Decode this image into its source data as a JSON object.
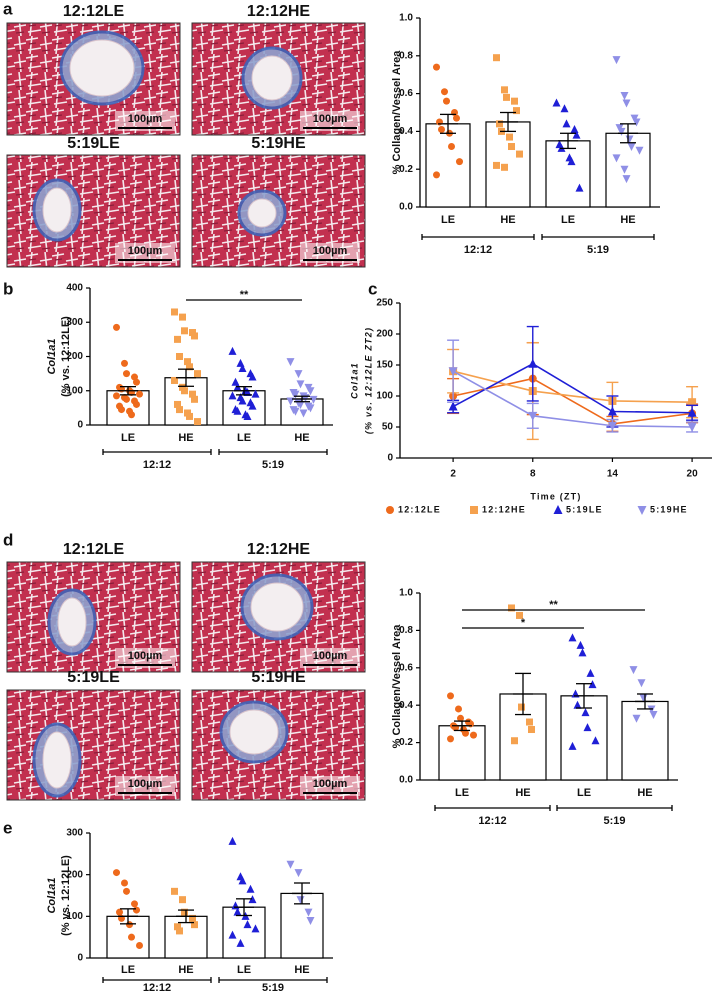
{
  "panel_labels": [
    "a",
    "b",
    "c",
    "d",
    "e"
  ],
  "micrographs": [
    {
      "labels": [
        "12:12LE",
        "12:12HE",
        "5:19LE",
        "5:19HE"
      ],
      "scale_bar": "100µm"
    },
    {
      "labels": [
        "12:12LE",
        "12:12HE",
        "5:19LE",
        "5:19HE"
      ],
      "scale_bar": "100µm"
    }
  ],
  "chart_data": [
    {
      "type": "bar",
      "y_label": [
        "% Collagen/Vessel Area"
      ],
      "categories": [
        "LE",
        "HE",
        "LE",
        "HE"
      ],
      "groups": [
        "12:12",
        "5:19"
      ],
      "values": [
        0.44,
        0.45,
        0.35,
        0.39
      ],
      "errors": [
        0.05,
        0.05,
        0.04,
        0.05
      ],
      "points": [
        [
          0.74,
          0.61,
          0.56,
          0.5,
          0.47,
          0.45,
          0.41,
          0.39,
          0.32,
          0.24,
          0.17
        ],
        [
          0.79,
          0.62,
          0.58,
          0.56,
          0.51,
          0.44,
          0.4,
          0.37,
          0.32,
          0.28,
          0.22,
          0.21
        ],
        [
          0.55,
          0.52,
          0.44,
          0.41,
          0.38,
          0.33,
          0.31,
          0.26,
          0.24,
          0.1
        ],
        [
          0.78,
          0.59,
          0.55,
          0.47,
          0.45,
          0.42,
          0.4,
          0.36,
          0.32,
          0.3,
          0.26,
          0.2,
          0.15
        ]
      ],
      "colors": [
        "#ee6a1c",
        "#f5a14e",
        "#1f1fd6",
        "#8f8fe6"
      ],
      "markers": [
        "circle",
        "square",
        "triangle-up",
        "triangle-down"
      ],
      "ylim": [
        0,
        1
      ],
      "yticks": [
        {
          "value": 0,
          "label": "0.0"
        },
        {
          "value": 0.2,
          "label": "0.2"
        },
        {
          "value": 0.4,
          "label": "0.4"
        },
        {
          "value": 0.6,
          "label": "0.6"
        },
        {
          "value": 0.8,
          "label": "0.8"
        },
        {
          "value": 1,
          "label": "1.0"
        }
      ],
      "significance": []
    },
    {
      "type": "bar",
      "y_label": [
        "Col1a1",
        "(% vs. 12:12LE)"
      ],
      "categories": [
        "LE",
        "HE",
        "LE",
        "HE"
      ],
      "groups": [
        "12:12",
        "5:19"
      ],
      "values": [
        100,
        138,
        100,
        76
      ],
      "errors": [
        12,
        25,
        12,
        8
      ],
      "points": [
        [
          285,
          180,
          150,
          140,
          125,
          110,
          105,
          100,
          95,
          90,
          85,
          80,
          75,
          70,
          60,
          55,
          45,
          40,
          30
        ],
        [
          330,
          315,
          275,
          270,
          260,
          250,
          200,
          185,
          170,
          150,
          130,
          110,
          100,
          90,
          75,
          60,
          45,
          35,
          25,
          10
        ],
        [
          215,
          180,
          165,
          150,
          140,
          125,
          110,
          100,
          95,
          90,
          85,
          80,
          70,
          65,
          55,
          45,
          40,
          30,
          25
        ],
        [
          185,
          150,
          120,
          110,
          100,
          95,
          90,
          85,
          80,
          75,
          70,
          65,
          60,
          55,
          50,
          45,
          40,
          35
        ]
      ],
      "colors": [
        "#ee6a1c",
        "#f5a14e",
        "#1f1fd6",
        "#8f8fe6"
      ],
      "markers": [
        "circle",
        "square",
        "triangle-up",
        "triangle-down"
      ],
      "ylim": [
        0,
        400
      ],
      "yticks": [
        0,
        100,
        200,
        300,
        400
      ],
      "significance": [
        {
          "label": "**",
          "from": 1,
          "to": 3
        }
      ]
    },
    {
      "type": "line",
      "x_label": "Time (ZT)",
      "y_label": [
        "Col1a1",
        "(% vs. 12:12LE ZT2)"
      ],
      "x": [
        2,
        8,
        14,
        20
      ],
      "xlim": [
        -2,
        21.5
      ],
      "xticks": [
        2,
        8,
        14,
        20
      ],
      "ylim": [
        0,
        250
      ],
      "yticks": [
        0,
        50,
        100,
        150,
        200,
        250
      ],
      "series": [
        {
          "name": "12:12LE",
          "color": "#ee6a1c",
          "marker": "circle",
          "values": [
            100,
            128,
            55,
            72
          ],
          "errors": [
            28,
            58,
            12,
            15
          ]
        },
        {
          "name": "12:12HE",
          "color": "#f5a14e",
          "marker": "square",
          "values": [
            140,
            108,
            92,
            90
          ],
          "errors": [
            35,
            78,
            30,
            25
          ]
        },
        {
          "name": "5:19LE",
          "color": "#1f1fd6",
          "marker": "triangle-up",
          "values": [
            83,
            152,
            75,
            73
          ],
          "errors": [
            10,
            60,
            25,
            12
          ]
        },
        {
          "name": "5:19HE",
          "color": "#8f8fe6",
          "marker": "triangle-down",
          "values": [
            140,
            68,
            52,
            50
          ],
          "errors": [
            50,
            20,
            10,
            8
          ]
        }
      ]
    },
    {
      "type": "bar",
      "y_label": [
        "% Collagen/Vessel Area"
      ],
      "categories": [
        "LE",
        "HE",
        "LE",
        "HE"
      ],
      "groups": [
        "12:12",
        "5:19"
      ],
      "values": [
        0.29,
        0.46,
        0.45,
        0.42
      ],
      "errors": [
        0.025,
        0.11,
        0.065,
        0.04
      ],
      "points": [
        [
          0.45,
          0.38,
          0.33,
          0.31,
          0.3,
          0.29,
          0.28,
          0.27,
          0.25,
          0.24,
          0.22
        ],
        [
          0.92,
          0.88,
          0.39,
          0.31,
          0.27,
          0.21
        ],
        [
          0.76,
          0.72,
          0.68,
          0.57,
          0.51,
          0.46,
          0.4,
          0.36,
          0.28,
          0.21,
          0.18
        ],
        [
          0.59,
          0.52,
          0.44,
          0.38,
          0.35,
          0.33
        ]
      ],
      "colors": [
        "#ee6a1c",
        "#f5a14e",
        "#1f1fd6",
        "#8f8fe6"
      ],
      "markers": [
        "circle",
        "square",
        "triangle-up",
        "triangle-down"
      ],
      "ylim": [
        0,
        1
      ],
      "yticks": [
        {
          "value": 0,
          "label": "0.0"
        },
        {
          "value": 0.2,
          "label": "0.2"
        },
        {
          "value": 0.4,
          "label": "0.4"
        },
        {
          "value": 0.6,
          "label": "0.6"
        },
        {
          "value": 0.8,
          "label": "0.8"
        },
        {
          "value": 1,
          "label": "1.0"
        }
      ],
      "significance": [
        {
          "label": "*",
          "from": 0,
          "to": 2
        },
        {
          "label": "**",
          "from": 0,
          "to": 3
        }
      ]
    },
    {
      "type": "bar",
      "y_label": [
        "Col1a1",
        "(% vs. 12:12LE)"
      ],
      "categories": [
        "LE",
        "HE",
        "LE",
        "HE"
      ],
      "groups": [
        "12:12",
        "5:19"
      ],
      "values": [
        100,
        100,
        122,
        155
      ],
      "errors": [
        18,
        15,
        20,
        25
      ],
      "points": [
        [
          205,
          180,
          160,
          130,
          115,
          110,
          95,
          80,
          50,
          30
        ],
        [
          160,
          140,
          110,
          95,
          80,
          75,
          65
        ],
        [
          280,
          195,
          185,
          165,
          140,
          125,
          110,
          100,
          80,
          70,
          55,
          35
        ],
        [
          225,
          205,
          140,
          110,
          90
        ]
      ],
      "colors": [
        "#ee6a1c",
        "#f5a14e",
        "#1f1fd6",
        "#8f8fe6"
      ],
      "markers": [
        "circle",
        "square",
        "triangle-up",
        "triangle-down"
      ],
      "ylim": [
        0,
        300
      ],
      "yticks": [
        0,
        100,
        200,
        300
      ],
      "significance": []
    }
  ]
}
